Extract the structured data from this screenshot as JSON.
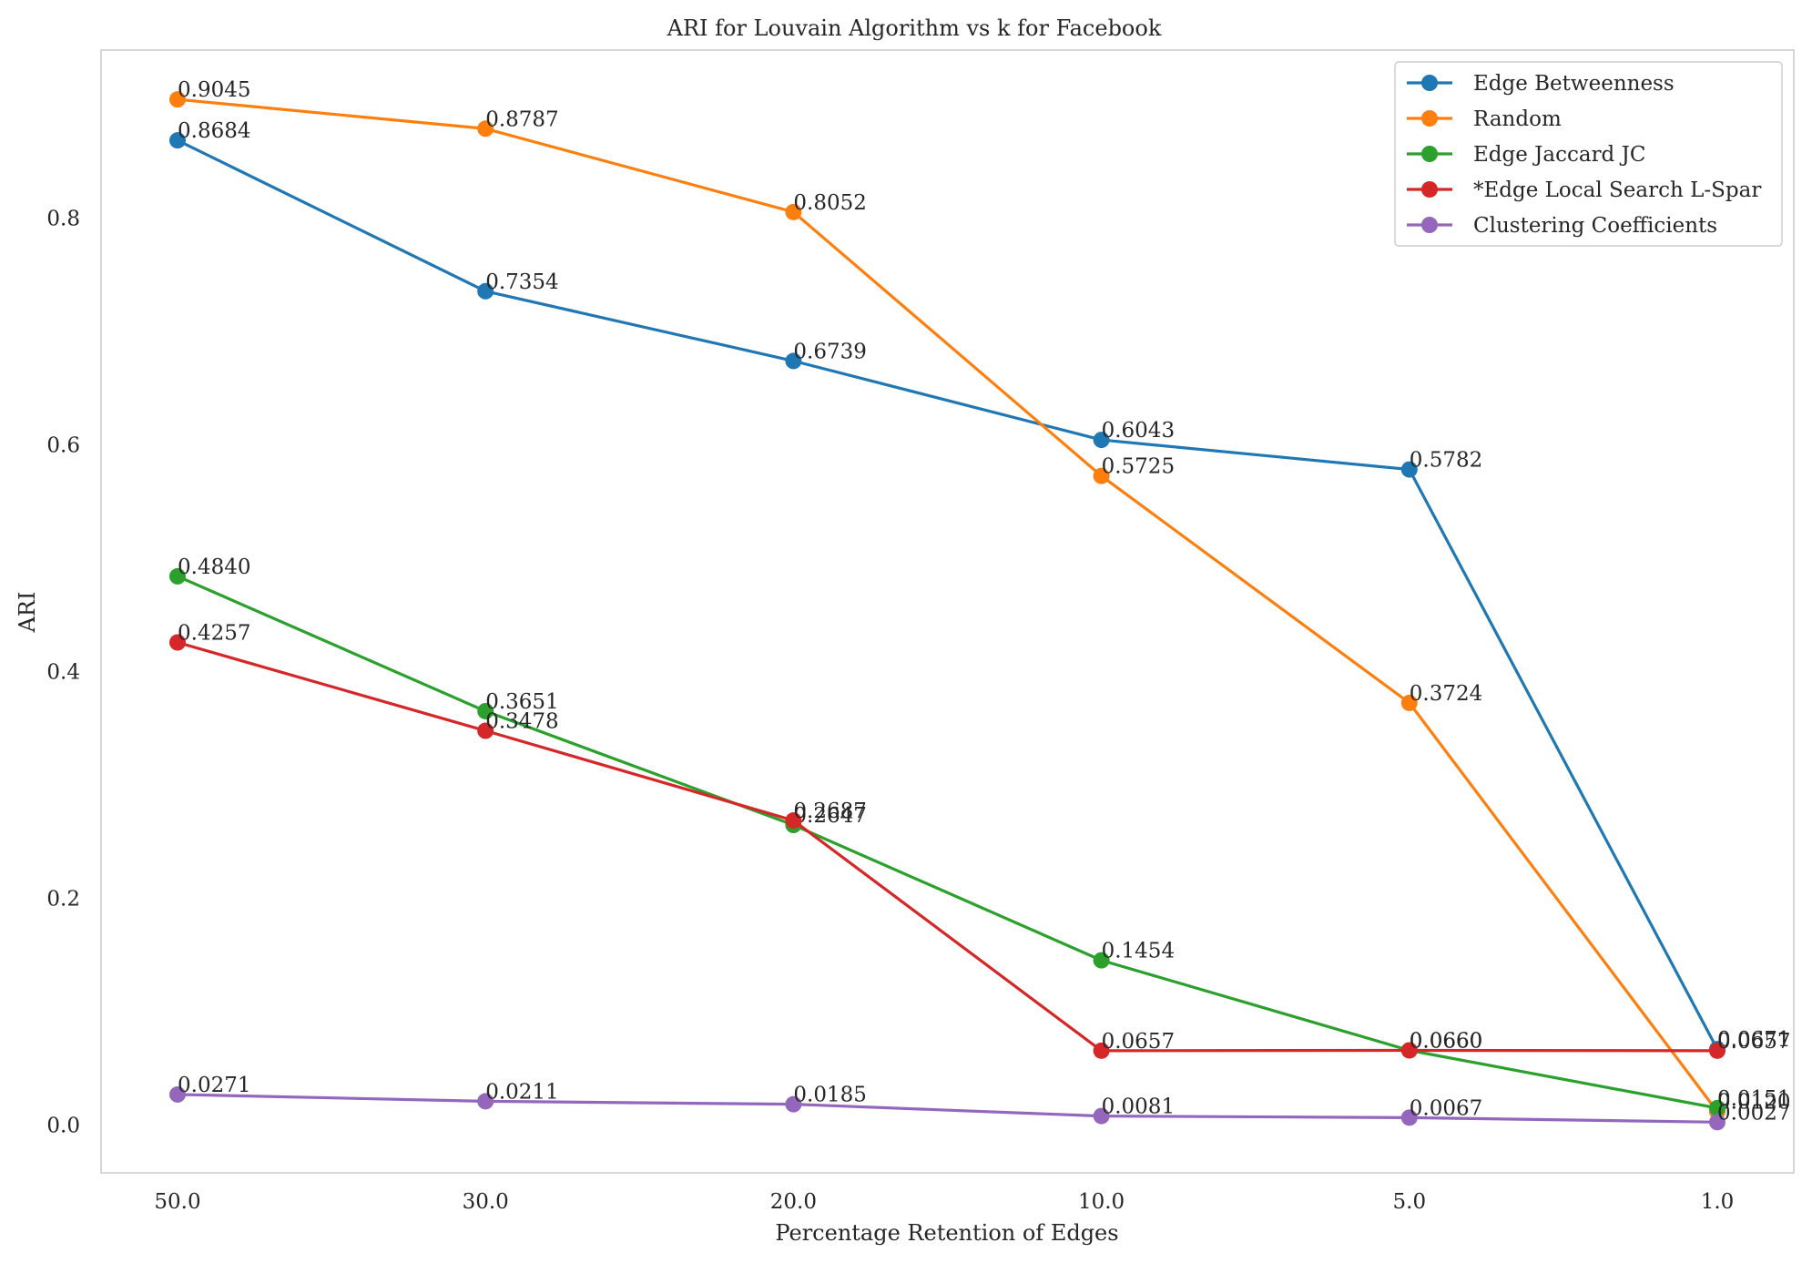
{
  "chart_data": {
    "type": "line",
    "title": "ARI for Louvain Algorithm vs k for Facebook",
    "xlabel": "Percentage Retention of Edges",
    "ylabel": "ARI",
    "categories": [
      "50.0",
      "30.0",
      "20.0",
      "10.0",
      "5.0",
      "1.0"
    ],
    "ylim": [
      -0.042,
      0.948
    ],
    "yticks": [
      0.0,
      0.2,
      0.4,
      0.6,
      0.8
    ],
    "ytick_labels": [
      "0.0",
      "0.2",
      "0.4",
      "0.6",
      "0.8"
    ],
    "grid": false,
    "legend_position": "top-right",
    "series": [
      {
        "name": "Edge Betweenness",
        "color": "#1f77b4",
        "values": [
          0.8684,
          0.7354,
          0.6739,
          0.6043,
          0.5782,
          0.0671
        ],
        "labels": [
          "0.8684",
          "0.7354",
          "0.6739",
          "0.6043",
          "0.5782",
          "0.0671"
        ]
      },
      {
        "name": "Random",
        "color": "#ff7f0e",
        "values": [
          0.9045,
          0.8787,
          0.8052,
          0.5725,
          0.3724,
          0.012
        ],
        "labels": [
          "0.9045",
          "0.8787",
          "0.8052",
          "0.5725",
          "0.3724",
          "0.0120"
        ]
      },
      {
        "name": "Edge Jaccard JC",
        "color": "#2ca02c",
        "values": [
          0.484,
          0.3651,
          0.2647,
          0.1454,
          0.066,
          0.0151
        ],
        "labels": [
          "0.4840",
          "0.3651",
          "0.2647",
          "0.1454",
          "0.0660",
          "0.0151"
        ]
      },
      {
        "name": "*Edge Local Search L-Spar",
        "color": "#d62728",
        "values": [
          0.4257,
          0.3478,
          0.2687,
          0.0657,
          0.066,
          0.0657
        ],
        "labels": [
          "0.4257",
          "0.3478",
          "0.2687",
          "0.0657",
          "0.0660",
          "0.0657"
        ]
      },
      {
        "name": "Clustering Coefficients",
        "color": "#9467bd",
        "values": [
          0.0271,
          0.0211,
          0.0185,
          0.0081,
          0.0067,
          0.0027
        ],
        "labels": [
          "0.0271",
          "0.0211",
          "0.0185",
          "0.0081",
          "0.0067",
          "0.0027"
        ]
      }
    ]
  }
}
